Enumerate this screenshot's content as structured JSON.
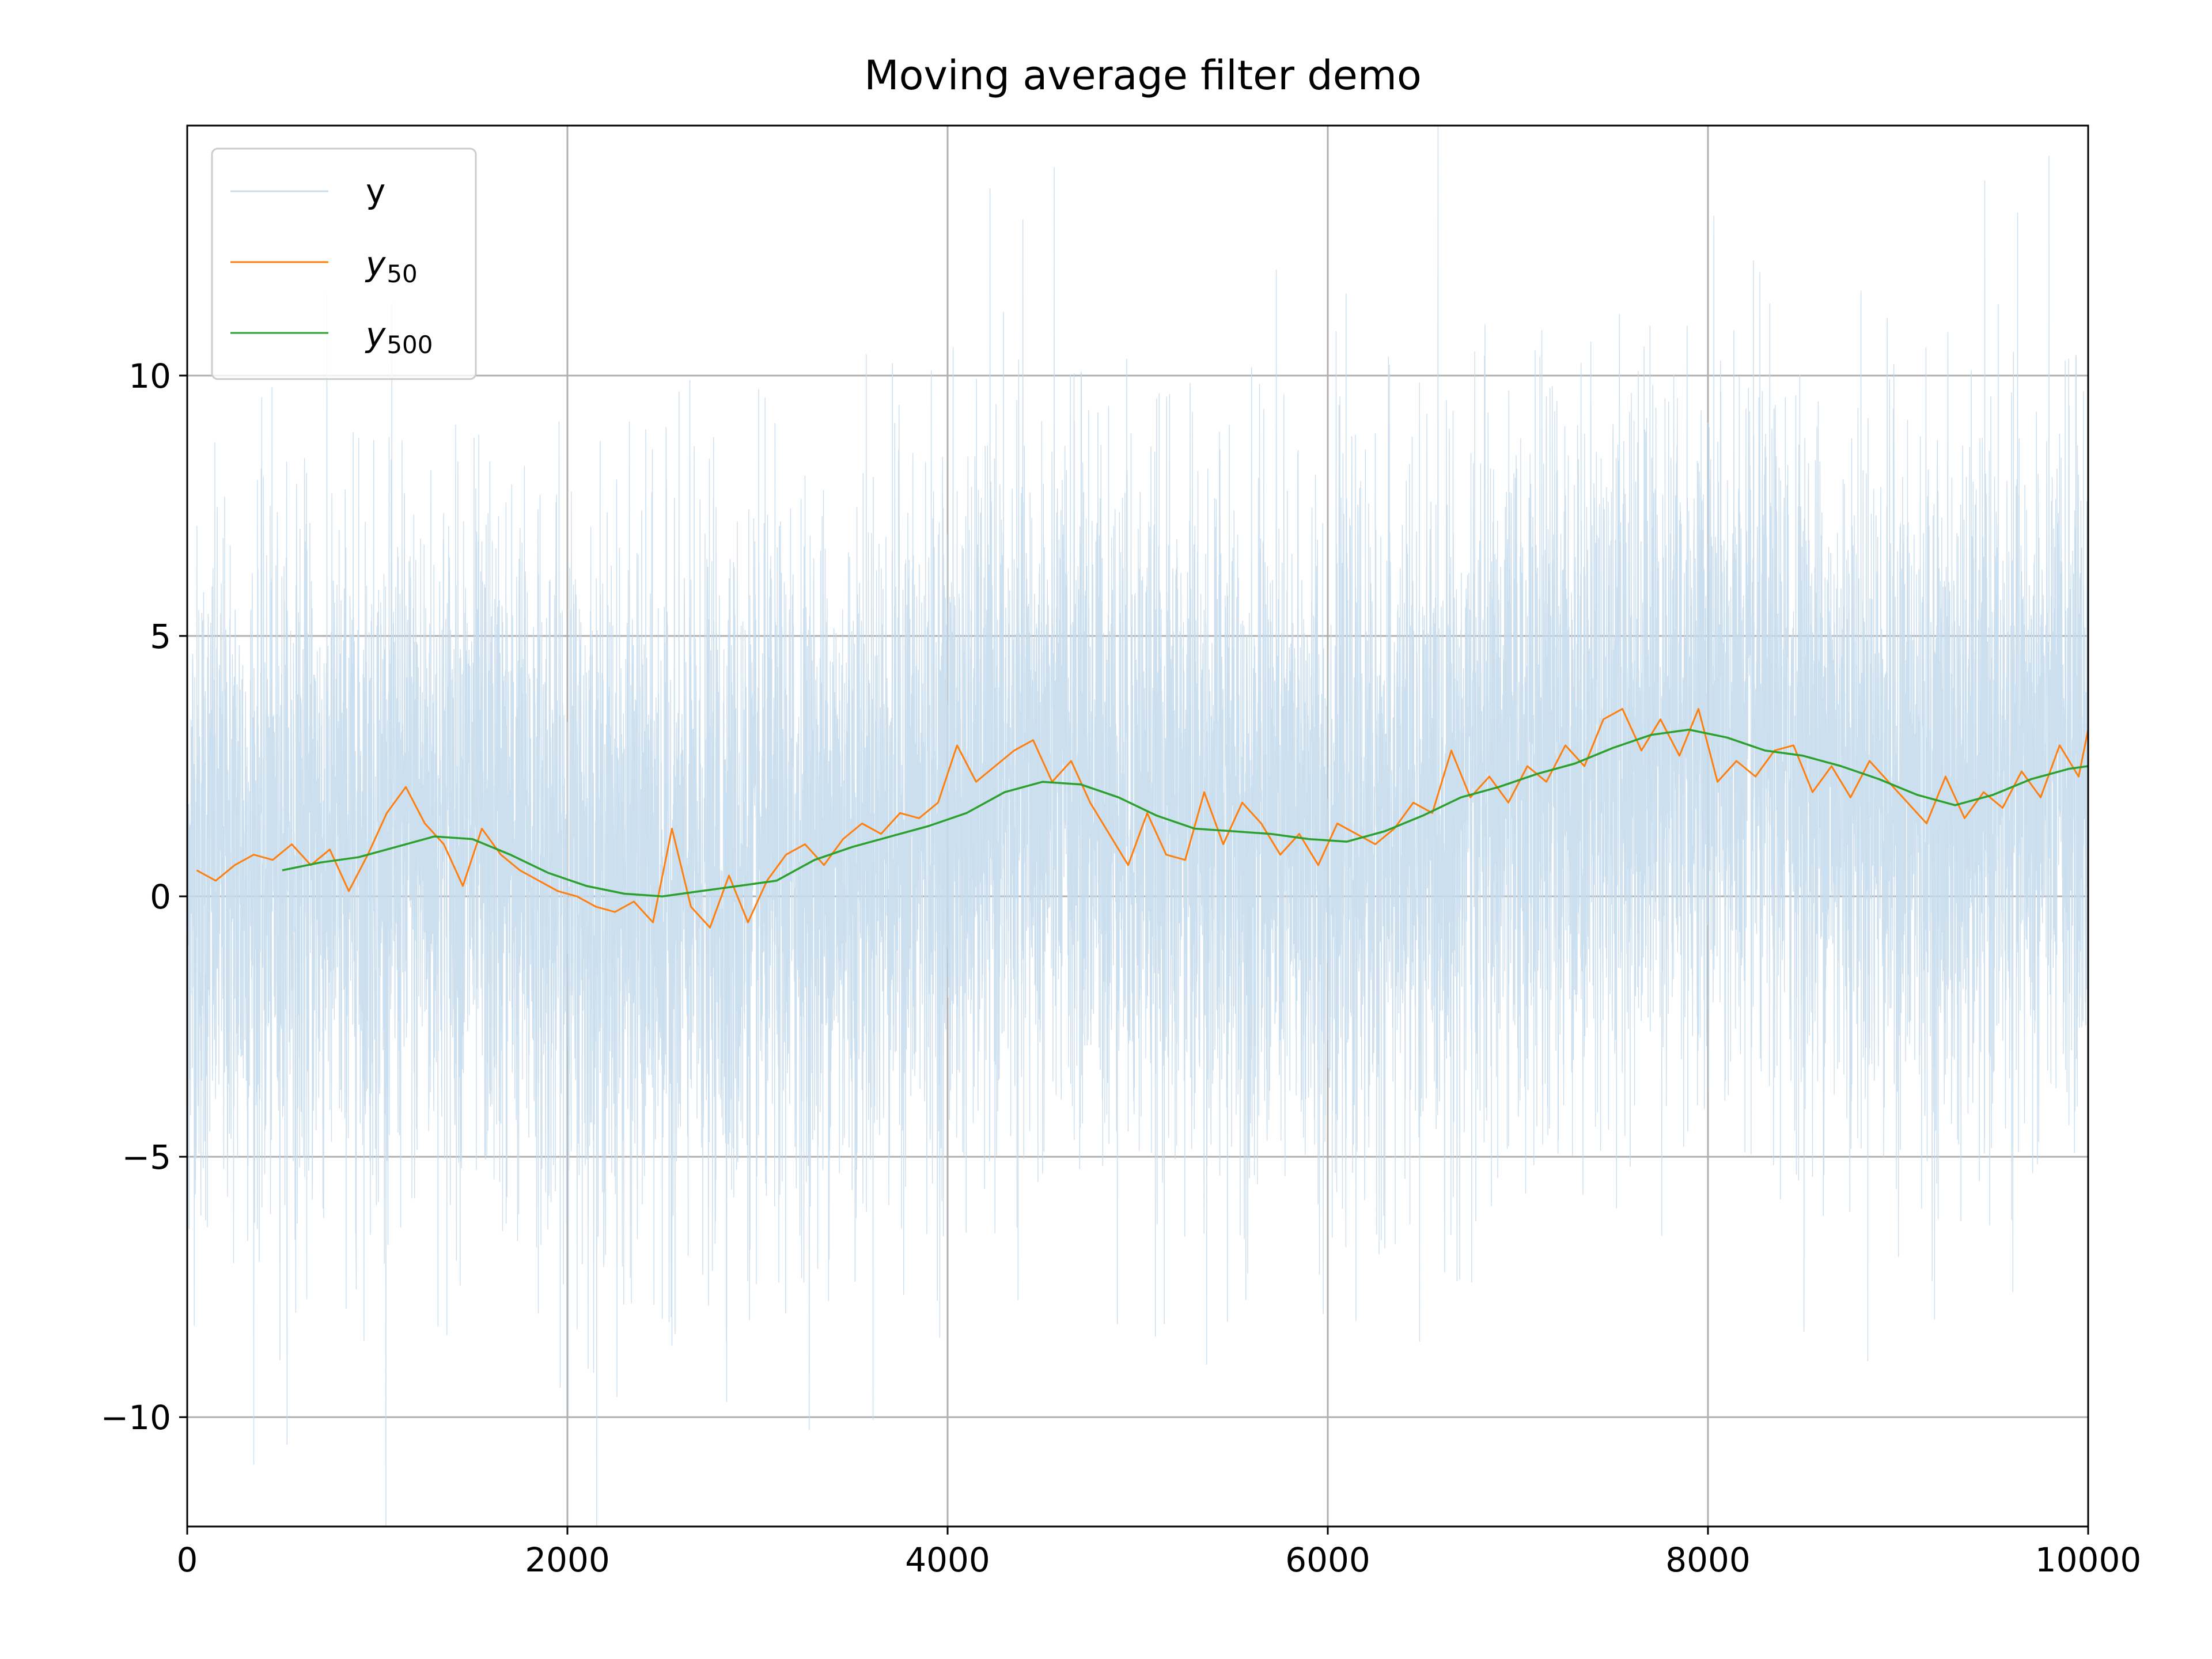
{
  "chart_data": {
    "type": "line",
    "title": "Moving average filter demo",
    "xlabel": "",
    "ylabel": "",
    "xlim": [
      0,
      10000
    ],
    "ylim": [
      -12.1,
      14.8
    ],
    "xticks": [
      0,
      2000,
      4000,
      6000,
      8000,
      10000
    ],
    "xtick_labels": [
      "0",
      "2000",
      "4000",
      "6000",
      "8000",
      "10000"
    ],
    "yticks": [
      -10,
      -5,
      0,
      5,
      10
    ],
    "ytick_labels": [
      "−10",
      "−5",
      "0",
      "5",
      "10"
    ],
    "grid": true,
    "legend": {
      "position": "top-left",
      "entries": [
        {
          "series": "y",
          "label": "y",
          "sub": ""
        },
        {
          "series": "y50",
          "label": "y",
          "sub": "50"
        },
        {
          "series": "y500",
          "label": "y",
          "sub": "500"
        }
      ]
    },
    "colors": {
      "y": "#c6dbed",
      "y50": "#ff7f0e",
      "y500": "#2ca02c",
      "grid": "#b0b0b0",
      "axes": "#000000"
    },
    "series": [
      {
        "key": "y",
        "noise_amplitude": 3.3,
        "n_points": 10000,
        "trend": {
          "x": [
            0,
            200,
            400,
            600,
            800,
            1000,
            1200,
            1400,
            1600,
            1800,
            2000,
            2200,
            2400,
            2600,
            2800,
            3000,
            3200,
            3400,
            3600,
            3800,
            4000,
            4200,
            4400,
            4600,
            4800,
            5000,
            5200,
            5400,
            5600,
            5800,
            6000,
            6200,
            6400,
            6600,
            6800,
            7000,
            7200,
            7400,
            7600,
            7800,
            8000,
            8200,
            8400,
            8600,
            8800,
            9000,
            9200,
            9400,
            9600,
            9800,
            10000
          ],
          "y": [
            0.4,
            0.5,
            0.6,
            0.7,
            0.8,
            0.9,
            1.1,
            1.2,
            1.0,
            0.7,
            0.4,
            0.1,
            0.0,
            0.1,
            0.2,
            0.3,
            0.6,
            0.9,
            1.1,
            1.3,
            1.5,
            1.8,
            2.1,
            2.2,
            2.1,
            1.7,
            1.4,
            1.3,
            1.2,
            1.1,
            1.0,
            1.1,
            1.3,
            1.6,
            1.9,
            2.2,
            2.5,
            2.8,
            3.1,
            3.2,
            3.1,
            2.8,
            2.7,
            2.5,
            2.3,
            2.0,
            1.8,
            1.9,
            2.2,
            2.4,
            2.5
          ]
        }
      },
      {
        "key": "y50",
        "x": [
          50,
          150,
          250,
          350,
          450,
          550,
          650,
          750,
          850,
          950,
          1050,
          1150,
          1250,
          1350,
          1450,
          1550,
          1650,
          1750,
          1850,
          1950,
          2050,
          2150,
          2250,
          2350,
          2450,
          2550,
          2650,
          2750,
          2850,
          2950,
          3050,
          3150,
          3250,
          3350,
          3450,
          3550,
          3650,
          3750,
          3850,
          3950,
          4050,
          4150,
          4250,
          4350,
          4450,
          4550,
          4650,
          4750,
          4850,
          4950,
          5050,
          5150,
          5250,
          5350,
          5450,
          5550,
          5650,
          5750,
          5850,
          5950,
          6050,
          6150,
          6250,
          6350,
          6450,
          6550,
          6650,
          6750,
          6850,
          6950,
          7050,
          7150,
          7250,
          7350,
          7450,
          7550,
          7650,
          7750,
          7850,
          7950,
          8050,
          8150,
          8250,
          8350,
          8450,
          8550,
          8650,
          8750,
          8850,
          8950,
          9050,
          9150,
          9250,
          9350,
          9450,
          9550,
          9650,
          9750,
          9850,
          9950,
          10000
        ],
        "y": [
          0.5,
          0.3,
          0.6,
          0.8,
          0.7,
          1.0,
          0.6,
          0.9,
          0.1,
          0.8,
          1.6,
          2.1,
          1.4,
          1.0,
          0.2,
          1.3,
          0.8,
          0.5,
          0.3,
          0.1,
          0.0,
          -0.2,
          -0.3,
          -0.1,
          -0.5,
          1.3,
          -0.2,
          -0.6,
          0.4,
          -0.5,
          0.3,
          0.8,
          1.0,
          0.6,
          1.1,
          1.4,
          1.2,
          1.6,
          1.5,
          1.8,
          2.9,
          2.2,
          2.5,
          2.8,
          3.0,
          2.2,
          2.6,
          1.8,
          1.2,
          0.6,
          1.6,
          0.8,
          0.7,
          2.0,
          1.0,
          1.8,
          1.4,
          0.8,
          1.2,
          0.6,
          1.4,
          1.2,
          1.0,
          1.3,
          1.8,
          1.6,
          2.8,
          1.9,
          2.3,
          1.8,
          2.5,
          2.2,
          2.9,
          2.5,
          3.4,
          3.6,
          2.8,
          3.4,
          2.7,
          3.6,
          2.2,
          2.6,
          2.3,
          2.8,
          2.9,
          2.0,
          2.5,
          1.9,
          2.6,
          2.2,
          1.8,
          1.4,
          2.3,
          1.5,
          2.0,
          1.7,
          2.4,
          1.9,
          2.9,
          2.3,
          3.2
        ]
      },
      {
        "key": "y500",
        "x": [
          500,
          700,
          900,
          1100,
          1300,
          1500,
          1700,
          1900,
          2100,
          2300,
          2500,
          2700,
          2900,
          3100,
          3300,
          3500,
          3700,
          3900,
          4100,
          4300,
          4500,
          4700,
          4900,
          5100,
          5300,
          5500,
          5700,
          5900,
          6100,
          6300,
          6500,
          6700,
          6900,
          7100,
          7300,
          7500,
          7700,
          7900,
          8100,
          8300,
          8500,
          8700,
          8900,
          9100,
          9300,
          9500,
          9700,
          9900,
          10000
        ],
        "y": [
          0.5,
          0.65,
          0.75,
          0.95,
          1.15,
          1.1,
          0.8,
          0.45,
          0.2,
          0.05,
          0.0,
          0.1,
          0.2,
          0.3,
          0.7,
          0.95,
          1.15,
          1.35,
          1.6,
          2.0,
          2.2,
          2.15,
          1.9,
          1.55,
          1.3,
          1.25,
          1.2,
          1.1,
          1.05,
          1.25,
          1.55,
          1.9,
          2.1,
          2.35,
          2.55,
          2.85,
          3.1,
          3.2,
          3.05,
          2.8,
          2.7,
          2.5,
          2.25,
          1.95,
          1.75,
          1.95,
          2.25,
          2.45,
          2.5
        ]
      }
    ]
  }
}
